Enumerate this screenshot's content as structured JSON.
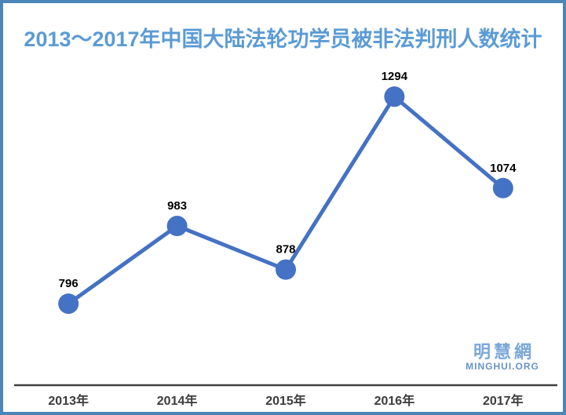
{
  "title": "2013～2017年中国大陆法轮功学员被非法判刑人数统计",
  "watermark": {
    "name": "明慧網",
    "site": "MINGHUI.ORG"
  },
  "colors": {
    "title": "#5b9bd5",
    "line": "#4472c4",
    "marker": "#4472c4",
    "axis": "#404040",
    "data_label": "#000000",
    "tick_label": "#3c3c3c",
    "frame_border": "#4a86b8",
    "watermark_name": "#7aa7d9",
    "watermark_site": "#6593c9"
  },
  "chart_data": {
    "type": "line",
    "title": "2013～2017年中国大陆法轮功学员被非法判刑人数统计",
    "categories": [
      "2013年",
      "2014年",
      "2015年",
      "2016年",
      "2017年"
    ],
    "series": [
      {
        "name": "被非法判刑人数",
        "values": [
          796,
          983,
          878,
          1294,
          1074
        ]
      }
    ],
    "xlabel": "",
    "ylabel": "",
    "ylim": [
      600,
      1400
    ],
    "y_axis_visible": false,
    "grid": false,
    "legend": false,
    "data_labels": true,
    "marker": "circle"
  }
}
